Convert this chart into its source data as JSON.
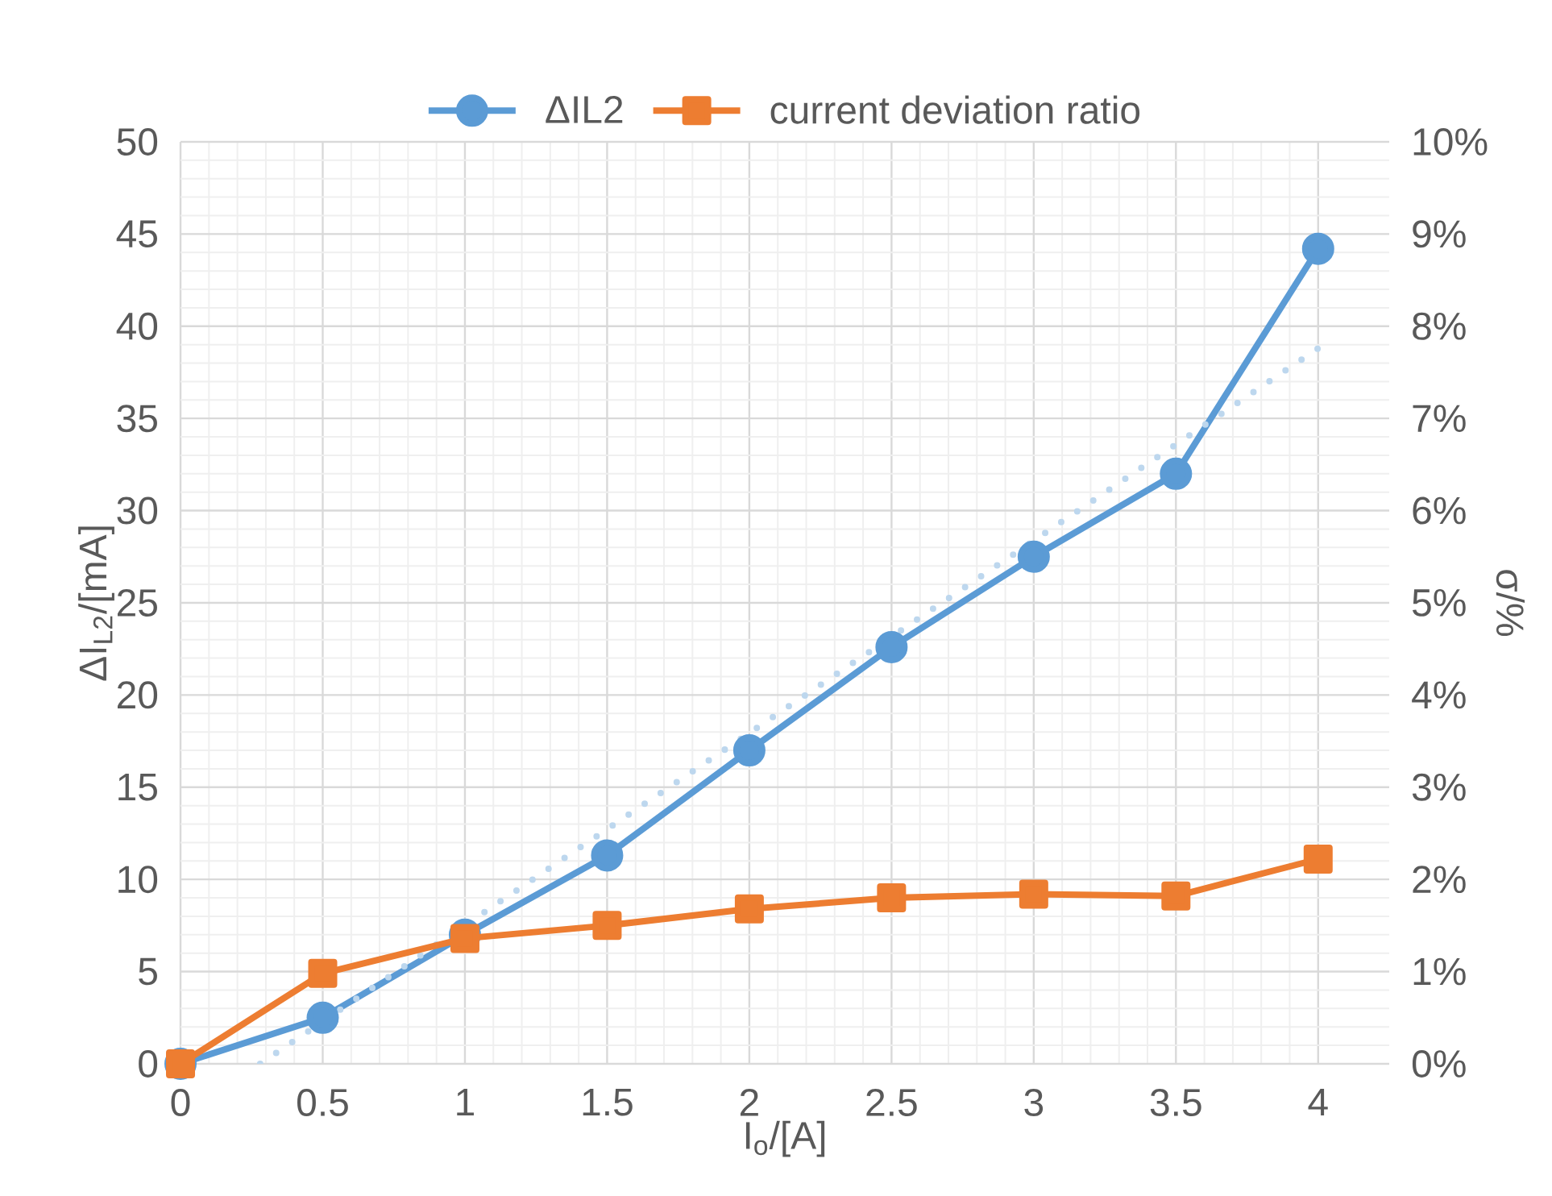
{
  "chart_data": {
    "type": "line",
    "xlabel": "I$_{o}$/[A]",
    "ylabel": "ΔI$_{L2}$/[mA]",
    "y2label": "σ/%",
    "x": [
      0,
      0.5,
      1,
      1.5,
      2,
      2.5,
      3,
      3.5,
      4
    ],
    "series": [
      {
        "name": "ΔIL2",
        "color": "#5b9bd5",
        "marker": "circle",
        "values": [
          0,
          2.5,
          7.0,
          11.3,
          17.0,
          22.6,
          27.5,
          32.0,
          44.2
        ]
      },
      {
        "name": "current deviation ratio",
        "color": "#ed7d31",
        "marker": "square",
        "axis": "y2",
        "values": [
          0,
          0.98,
          1.36,
          1.5,
          1.68,
          1.8,
          1.84,
          1.82,
          2.22
        ]
      },
      {
        "type": "line",
        "color": "#bdd7ee",
        "marker": "none",
        "line_style": "dotted",
        "x": [
          0.28,
          4
        ],
        "values": [
          0,
          38.8
        ]
      }
    ],
    "xlim": [
      0,
      4.25
    ],
    "ylim": [
      0,
      50
    ],
    "y2lim": [
      0,
      10
    ],
    "xticks": [
      0,
      0.5,
      1,
      1.5,
      2,
      2.5,
      3,
      3.5,
      4
    ],
    "yticks": [
      0,
      5,
      10,
      15,
      20,
      25,
      30,
      35,
      40,
      45,
      50
    ],
    "y2ticks": [
      {
        "value": 0,
        "label": "0%"
      },
      {
        "value": 1,
        "label": "1%"
      },
      {
        "value": 2,
        "label": "2%"
      },
      {
        "value": 3,
        "label": "3%"
      },
      {
        "value": 4,
        "label": "4%"
      },
      {
        "value": 5,
        "label": "5%"
      },
      {
        "value": 6,
        "label": "6%"
      },
      {
        "value": 7,
        "label": "7%"
      },
      {
        "value": 8,
        "label": "8%"
      },
      {
        "value": 9,
        "label": "9%"
      },
      {
        "value": 10,
        "label": "10%"
      }
    ],
    "grid": true,
    "legend": "top"
  }
}
